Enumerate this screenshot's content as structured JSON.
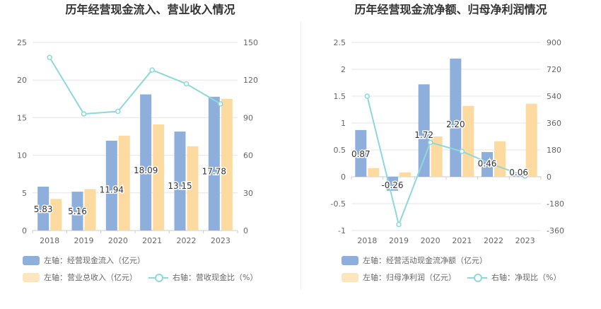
{
  "charts": [
    {
      "id": "left",
      "title": "历年经营现金流入、营业收入情况",
      "legend": [
        {
          "label": "左轴：经营现金流入（亿元）",
          "type": "bar",
          "color": "#8eafdc"
        },
        {
          "label": "左轴：营业总收入（亿元）",
          "type": "bar",
          "color": "#fddba0"
        },
        {
          "label": "右轴：营收现金比（%）",
          "type": "line",
          "color": "#8cd8dd"
        }
      ]
    },
    {
      "id": "right",
      "title": "历年经营现金流净额、归母净利润情况",
      "legend": [
        {
          "label": "左轴：经营活动现金流净额（亿元）",
          "type": "bar",
          "color": "#8eafdc"
        },
        {
          "label": "左轴：归母净利润（亿元）",
          "type": "bar",
          "color": "#fddba0"
        },
        {
          "label": "右轴：净现比（%）",
          "type": "line",
          "color": "#8cd8dd"
        }
      ]
    }
  ],
  "chart_data": [
    {
      "type": "bar",
      "categories": [
        "2018",
        "2019",
        "2020",
        "2021",
        "2022",
        "2023"
      ],
      "series": [
        {
          "name": "左轴：经营现金流入（亿元）",
          "axis": "left",
          "color": "#8eafdc",
          "values": [
            5.83,
            5.16,
            11.94,
            18.09,
            13.15,
            17.78
          ],
          "labels": [
            "5.83",
            "5.16",
            "11.94",
            "18.09",
            "13.15",
            "17.78"
          ]
        },
        {
          "name": "左轴：营业总收入（亿元）",
          "axis": "left",
          "color": "#fddba0",
          "values": [
            4.2,
            5.5,
            12.6,
            14.1,
            11.2,
            17.5
          ]
        },
        {
          "name": "右轴：营收现金比（%）",
          "axis": "right",
          "type": "line",
          "color": "#8cd8dd",
          "values": [
            138,
            93,
            95,
            128,
            117,
            101
          ]
        }
      ],
      "yleft": {
        "min": 0,
        "max": 25,
        "ticks": [
          0,
          5,
          10,
          15,
          20,
          25
        ],
        "tick_labels": [
          "0",
          "5",
          "10",
          "15",
          "20",
          "25"
        ]
      },
      "yright": {
        "min": 0,
        "max": 150,
        "ticks": [
          0,
          30,
          60,
          90,
          120,
          150
        ],
        "tick_labels": [
          "0",
          "30",
          "60",
          "90",
          "120",
          "150"
        ]
      },
      "grid": true,
      "legend_position": "bottom"
    },
    {
      "type": "bar",
      "categories": [
        "2018",
        "2019",
        "2020",
        "2021",
        "2022",
        "2023"
      ],
      "series": [
        {
          "name": "左轴：经营活动现金流净额（亿元）",
          "axis": "left",
          "color": "#8eafdc",
          "values": [
            0.87,
            -0.26,
            1.72,
            2.2,
            0.46,
            0.06
          ],
          "labels": [
            "0.87",
            "-0.26",
            "1.72",
            "2.20",
            "0.46",
            "0.06"
          ]
        },
        {
          "name": "左轴：归母净利润（亿元）",
          "axis": "left",
          "color": "#fddba0",
          "values": [
            0.16,
            0.08,
            0.75,
            1.32,
            0.66,
            1.36
          ]
        },
        {
          "name": "右轴：净现比（%）",
          "axis": "right",
          "type": "line",
          "color": "#8cd8dd",
          "values": [
            540,
            -320,
            230,
            170,
            80,
            5
          ]
        }
      ],
      "yleft": {
        "min": -1,
        "max": 2.5,
        "ticks": [
          -1,
          -0.5,
          0,
          0.5,
          1,
          1.5,
          2,
          2.5
        ],
        "tick_labels": [
          "-1",
          "-0.5",
          "0",
          "0.5",
          "1",
          "1.5",
          "2",
          "2.5"
        ]
      },
      "yright": {
        "min": -360,
        "max": 900,
        "ticks": [
          -360,
          -180,
          0,
          180,
          360,
          540,
          720,
          900
        ],
        "tick_labels": [
          "-360",
          "-180",
          "0",
          "180",
          "360",
          "540",
          "720",
          "900"
        ]
      },
      "grid": true,
      "legend_position": "bottom"
    }
  ]
}
